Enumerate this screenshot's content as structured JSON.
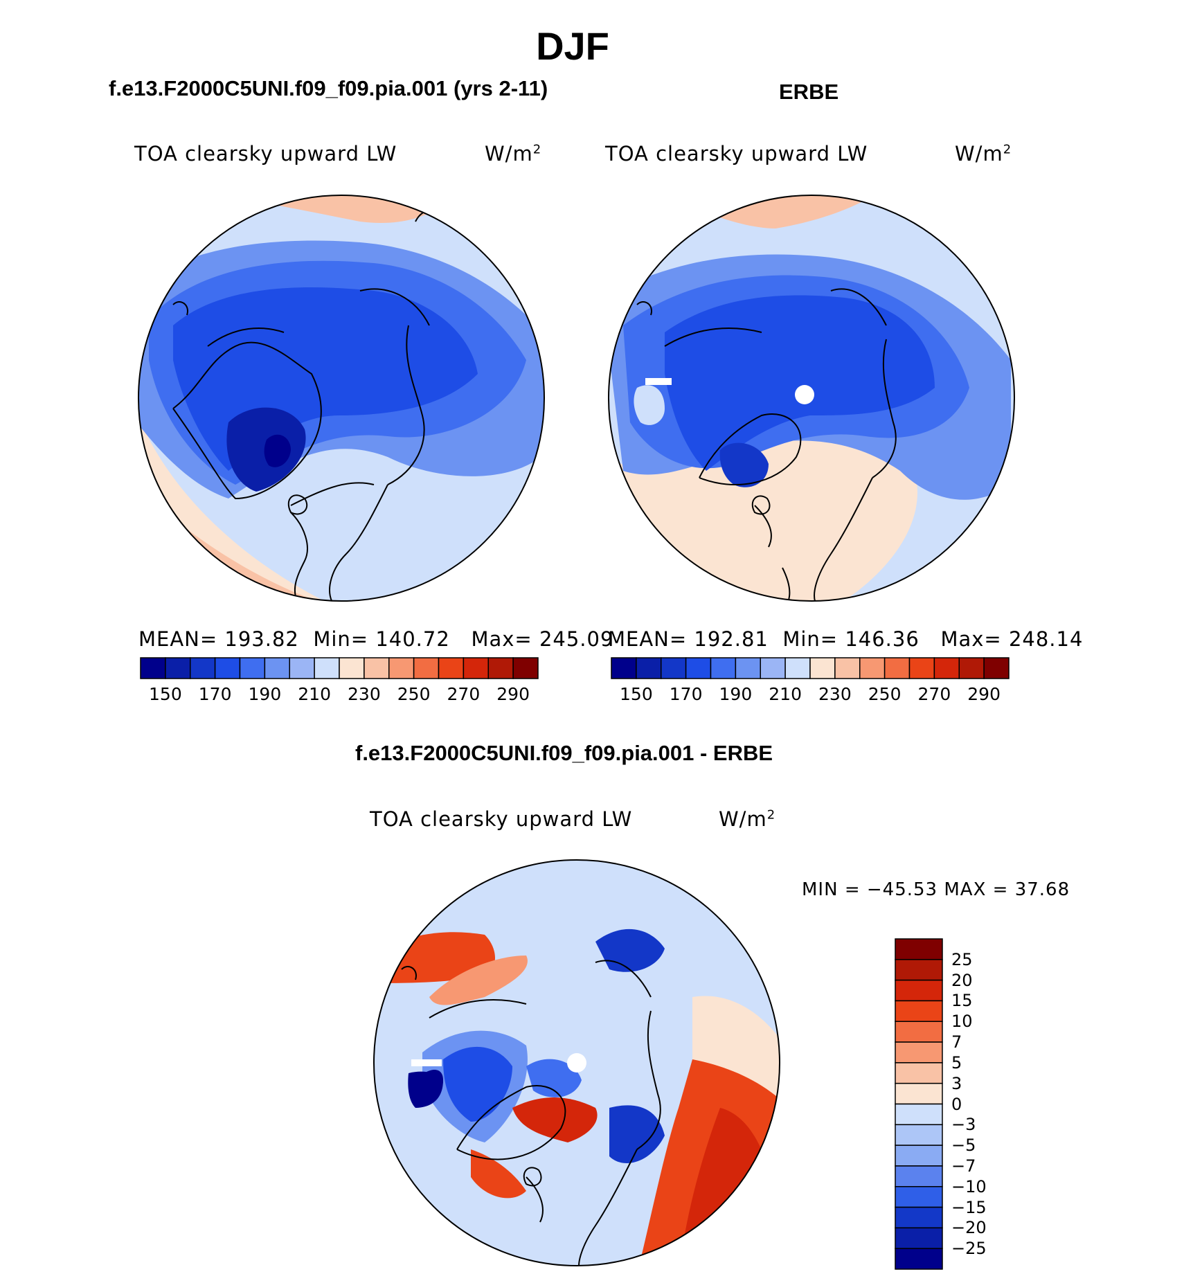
{
  "title": "DJF",
  "panels": [
    {
      "id": "model",
      "case_title": "f.e13.F2000C5UNI.f09_f09.pia.001 (yrs 2-11)",
      "variable": "TOA clearsky upward LW",
      "units": "W/m",
      "units_sup": "2",
      "stats": {
        "mean_label": "MEAN=",
        "mean": "193.82",
        "min_label": "Min=",
        "min": "140.72",
        "max_label": "Max=",
        "max": "245.09"
      }
    },
    {
      "id": "obs",
      "case_title": "ERBE",
      "variable": "TOA clearsky upward LW",
      "units": "W/m",
      "units_sup": "2",
      "stats": {
        "mean_label": "MEAN=",
        "mean": "192.81",
        "min_label": "Min=",
        "min": "146.36",
        "max_label": "Max=",
        "max": "248.14"
      }
    }
  ],
  "colorbar": {
    "colors": [
      "#00008b",
      "#0a1fa8",
      "#1337c8",
      "#1e4de6",
      "#3f6ef0",
      "#6c93f2",
      "#9bb5f5",
      "#cfe0fb",
      "#fbe4d2",
      "#f9c2a6",
      "#f79872",
      "#f26d42",
      "#ea4417",
      "#d4260a",
      "#b01906",
      "#7f0000"
    ],
    "ticks": [
      "150",
      "170",
      "190",
      "210",
      "230",
      "250",
      "270",
      "290"
    ]
  },
  "diff": {
    "case_title": "f.e13.F2000C5UNI.f09_f09.pia.001 - ERBE",
    "variable": "TOA clearsky upward LW",
    "units": "W/m",
    "units_sup": "2",
    "minmax": "MIN = −45.53 MAX =   37.68",
    "colorbar": {
      "colors": [
        "#7f0000",
        "#b01906",
        "#d4260a",
        "#ea4417",
        "#f26d42",
        "#f79872",
        "#f9c2a6",
        "#fbe4d2",
        "#cfe0fb",
        "#adc6f7",
        "#8aabf3",
        "#5b82ee",
        "#2f5fe8",
        "#1338c8",
        "#0a1fa8",
        "#00008b"
      ],
      "labels": [
        "25",
        "20",
        "15",
        "10",
        "7",
        "5",
        "3",
        "0",
        "−3",
        "−5",
        "−7",
        "−10",
        "−15",
        "−20",
        "−25"
      ]
    }
  }
}
